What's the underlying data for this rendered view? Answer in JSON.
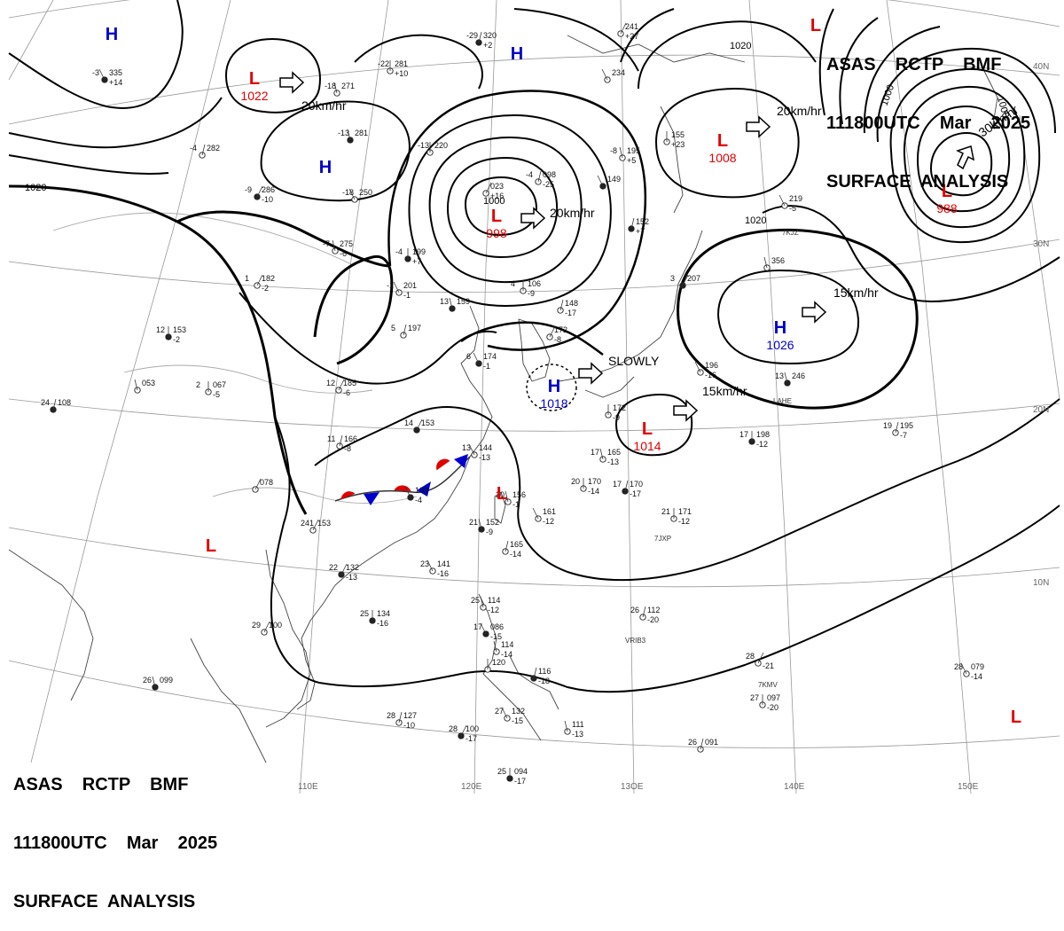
{
  "header_top": {
    "line1": "ASAS    RCTP    BMF",
    "line2": "111800UTC    Mar    2025",
    "line3": "SURFACE  ANALYSIS"
  },
  "header_bottom": {
    "line1": "ASAS    RCTP    BMF",
    "line2": "111800UTC    Mar    2025",
    "line3": "SURFACE  ANALYSIS"
  },
  "colors": {
    "low": "#e00000",
    "high": "#0000cc",
    "line": "#000000",
    "grid": "#888888"
  },
  "lon_labels": [
    "110E",
    "120E",
    "13OE",
    "140E",
    "150E"
  ],
  "lat_labels": [
    "40N",
    "30N",
    "20N",
    "10N"
  ],
  "pressure_centers": [
    {
      "type": "L",
      "value": "1022"
    },
    {
      "type": "H",
      "value": ""
    },
    {
      "type": "H",
      "value": ""
    },
    {
      "type": "H",
      "value": ""
    },
    {
      "type": "L",
      "value": "998"
    },
    {
      "type": "L",
      "value": "1008"
    },
    {
      "type": "L",
      "value": "988"
    },
    {
      "type": "L",
      "value": ""
    },
    {
      "type": "H",
      "value": "1026"
    },
    {
      "type": "H",
      "value": "1018"
    },
    {
      "type": "L",
      "value": "1014"
    },
    {
      "type": "L",
      "value": ""
    },
    {
      "type": "L",
      "value": ""
    },
    {
      "type": "L",
      "value": ""
    }
  ],
  "movements": [
    "20km/hr",
    "20km/hr",
    "20km/hr",
    "30km/hr",
    "15km/hr",
    "SLOWLY",
    "15km/hr"
  ],
  "isobar_labels": [
    "1020",
    "1020",
    "1000",
    "1000",
    "1000",
    "1020"
  ],
  "stations": [
    {
      "temp": "-3",
      "press": "335",
      "change": "+14"
    },
    {
      "temp": "-18",
      "press": "271",
      "change": ""
    },
    {
      "temp": "-22",
      "press": "281",
      "change": "+10"
    },
    {
      "temp": "-29",
      "press": "320",
      "change": "+2"
    },
    {
      "temp": "",
      "press": "241",
      "change": "+27"
    },
    {
      "temp": "",
      "press": "234",
      "change": ""
    },
    {
      "temp": "-13",
      "press": "281",
      "change": ""
    },
    {
      "temp": "-13",
      "press": "220",
      "change": ""
    },
    {
      "temp": "-4",
      "press": "282",
      "change": ""
    },
    {
      "temp": "-9",
      "press": "286",
      "change": "-10"
    },
    {
      "temp": "-18",
      "press": "250",
      "change": ""
    },
    {
      "temp": "-7",
      "press": "275",
      "change": "-6"
    },
    {
      "temp": "-4",
      "press": "199",
      "change": "+7"
    },
    {
      "temp": "-4",
      "press": "098",
      "change": "-25"
    },
    {
      "temp": "",
      "press": "023",
      "change": "+16"
    },
    {
      "temp": "",
      "press": "149",
      "change": ""
    },
    {
      "temp": "-8",
      "press": "195",
      "change": "+5"
    },
    {
      "temp": "",
      "press": "155",
      "change": "+23"
    },
    {
      "temp": "",
      "press": "152",
      "change": "+7"
    },
    {
      "temp": "1",
      "press": "182",
      "change": "-2"
    },
    {
      "temp": "-1",
      "press": "201",
      "change": "-1"
    },
    {
      "temp": "13",
      "press": "159",
      "change": ""
    },
    {
      "temp": "4",
      "press": "106",
      "change": "-9"
    },
    {
      "temp": "",
      "press": "148",
      "change": "-17"
    },
    {
      "temp": "3",
      "press": "207",
      "change": ""
    },
    {
      "temp": "",
      "press": "219",
      "change": "-5"
    },
    {
      "temp": "",
      "press": "356",
      "change": ""
    },
    {
      "temp": "12",
      "press": "153",
      "change": "-2"
    },
    {
      "temp": "5",
      "press": "197",
      "change": ""
    },
    {
      "temp": "",
      "press": "172",
      "change": "-8"
    },
    {
      "temp": "6",
      "press": "174",
      "change": "-1"
    },
    {
      "temp": "",
      "press": "053",
      "change": ""
    },
    {
      "temp": "2",
      "press": "067",
      "change": "-5"
    },
    {
      "temp": "24",
      "press": "108",
      "change": ""
    },
    {
      "temp": "12",
      "press": "185",
      "change": "-6"
    },
    {
      "temp": "",
      "press": "196",
      "change": "-16"
    },
    {
      "temp": "13",
      "press": "246",
      "change": ""
    },
    {
      "temp": "",
      "press": "172",
      "change": "-9"
    },
    {
      "temp": "11",
      "press": "166",
      "change": "-8"
    },
    {
      "temp": "14",
      "press": "153",
      "change": ""
    },
    {
      "temp": "13",
      "press": "144",
      "change": "-13"
    },
    {
      "temp": "17",
      "press": "165",
      "change": "-13"
    },
    {
      "temp": "17",
      "press": "198",
      "change": "-12"
    },
    {
      "temp": "19",
      "press": "195",
      "change": "-7"
    },
    {
      "temp": "",
      "press": "078",
      "change": ""
    },
    {
      "temp": "",
      "press": "139",
      "change": "-4"
    },
    {
      "temp": "20",
      "press": "156",
      "change": "-1"
    },
    {
      "temp": "20",
      "press": "170",
      "change": "-14"
    },
    {
      "temp": "17",
      "press": "170",
      "change": "-17"
    },
    {
      "temp": "241",
      "press": "153",
      "change": ""
    },
    {
      "temp": "",
      "press": "161",
      "change": "-12"
    },
    {
      "temp": "21",
      "press": "152",
      "change": "-9"
    },
    {
      "temp": "21",
      "press": "171",
      "change": "-12"
    },
    {
      "temp": "",
      "press": "165",
      "change": "-14"
    },
    {
      "temp": "22",
      "press": "132",
      "change": "-13"
    },
    {
      "temp": "23",
      "press": "141",
      "change": "-16"
    },
    {
      "temp": "25",
      "press": "114",
      "change": "-12"
    },
    {
      "temp": "25",
      "press": "134",
      "change": "-16"
    },
    {
      "temp": "26",
      "press": "112",
      "change": "-20"
    },
    {
      "temp": "29",
      "press": "100",
      "change": ""
    },
    {
      "temp": "17",
      "press": "086",
      "change": "-15"
    },
    {
      "temp": "",
      "press": "114",
      "change": "-14"
    },
    {
      "temp": "",
      "press": "120",
      "change": ""
    },
    {
      "temp": "",
      "press": "116",
      "change": "-18"
    },
    {
      "temp": "28",
      "press": "",
      "change": "-21"
    },
    {
      "temp": "28",
      "press": "079",
      "change": "-14"
    },
    {
      "temp": "26",
      "press": "099",
      "change": ""
    },
    {
      "temp": "27",
      "press": "097",
      "change": "-20"
    },
    {
      "temp": "28",
      "press": "127",
      "change": "-10"
    },
    {
      "temp": "28",
      "press": "100",
      "change": "-17"
    },
    {
      "temp": "27",
      "press": "132",
      "change": "-15"
    },
    {
      "temp": "",
      "press": "111",
      "change": "-13"
    },
    {
      "temp": "25",
      "press": "094",
      "change": "-17"
    },
    {
      "temp": "26",
      "press": "091",
      "change": ""
    }
  ],
  "ship_callsigns": [
    "7KJZ",
    "LAHE",
    "7JXP",
    "VRIB3",
    "7KMV"
  ]
}
